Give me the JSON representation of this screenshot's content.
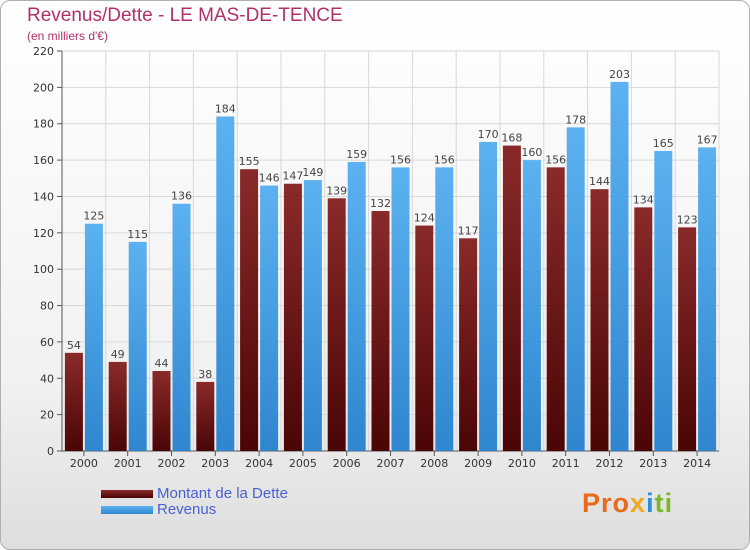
{
  "title": "Revenus/Dette - LE MAS-DE-TENCE",
  "subtitle": "(en milliers d'€)",
  "legend": [
    {
      "label": "Montant de la Dette",
      "color": "#7a1c1c"
    },
    {
      "label": "Revenus",
      "color": "#4aa3e6"
    }
  ],
  "logo": "Proxiti",
  "logo_colors": [
    "#e86a1a",
    "#f2a91f",
    "#2d8fd6",
    "#79b829"
  ],
  "chart_data": {
    "type": "bar",
    "categories": [
      "2000",
      "2001",
      "2002",
      "2003",
      "2004",
      "2005",
      "2006",
      "2007",
      "2008",
      "2009",
      "2010",
      "2011",
      "2012",
      "2013",
      "2014"
    ],
    "series": [
      {
        "name": "Montant de la Dette",
        "color": "#7a1c1c",
        "values": [
          54,
          49,
          44,
          38,
          155,
          147,
          139,
          132,
          124,
          117,
          168,
          156,
          144,
          134,
          123
        ]
      },
      {
        "name": "Revenus",
        "color": "#4aa3e6",
        "values": [
          125,
          115,
          136,
          184,
          146,
          149,
          159,
          156,
          156,
          170,
          160,
          178,
          203,
          165,
          167
        ]
      }
    ],
    "ylim": [
      0,
      220
    ],
    "yticks": [
      0,
      20,
      40,
      60,
      80,
      100,
      120,
      140,
      160,
      180,
      200,
      220
    ],
    "grid": true
  }
}
